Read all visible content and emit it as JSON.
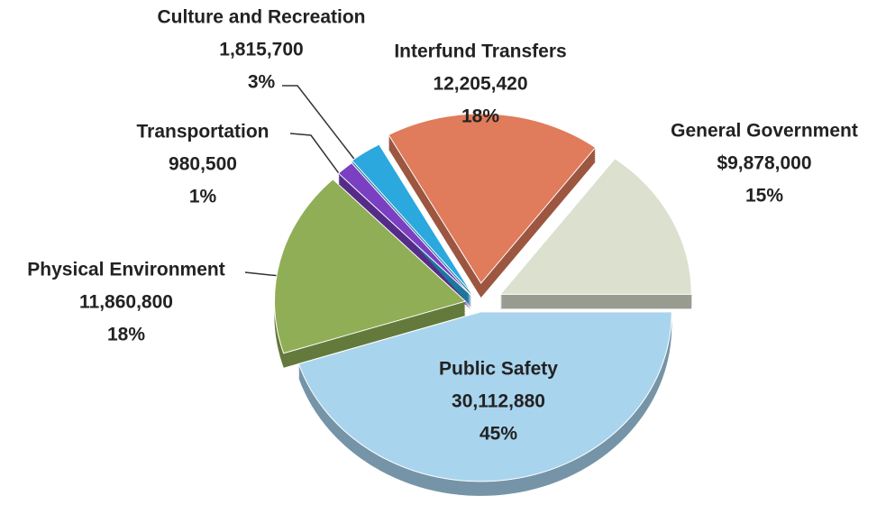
{
  "chart_data": {
    "type": "pie",
    "categories": [
      "Public Safety",
      "Physical Environment",
      "Transportation",
      "Culture and Recreation",
      "Interfund Transfers",
      "General Government"
    ],
    "values": [
      30112880,
      11860800,
      980500,
      1815700,
      12205420,
      9878000
    ],
    "value_labels": [
      "30,112,880",
      "11,860,800",
      "980,500",
      "1,815,700",
      "12,205,420",
      "$9,878,000"
    ],
    "percent_labels": [
      "45%",
      "18%",
      "1%",
      "3%",
      "18%",
      "15%"
    ],
    "colors": [
      "#a9d4ee",
      "#8fae56",
      "#7b3fc2",
      "#2ba8de",
      "#e07b5b",
      "#dbe0cf"
    ]
  }
}
